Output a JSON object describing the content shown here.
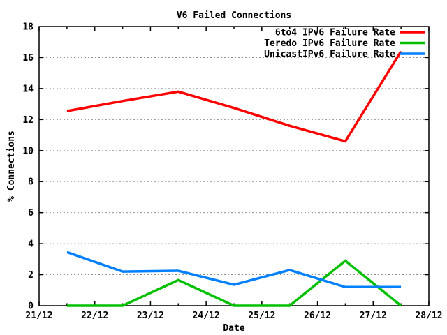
{
  "chart_data": {
    "type": "line",
    "title": "V6 Failed Connections",
    "xlabel": "Date",
    "ylabel": "% Connections",
    "x_tick_labels": [
      "21/12",
      "22/12",
      "23/12",
      "24/12",
      "25/12",
      "26/12",
      "27/12",
      "28/12"
    ],
    "y_tick_labels": [
      "0",
      "2",
      "4",
      "6",
      "8",
      "10",
      "12",
      "14",
      "16",
      "18"
    ],
    "xlim_days": [
      21,
      28
    ],
    "ylim": [
      0,
      18
    ],
    "y_tick_step": 2,
    "grid": "horizontal-dashed",
    "grid_color": "#909090",
    "axis_color": "#000000",
    "background_color": "#ffffff",
    "legend_position": "top-right-inside",
    "x": [
      21.5,
      22.5,
      23.5,
      24.5,
      25.5,
      26.5,
      27.5
    ],
    "series": [
      {
        "name": "6to4 IPv6 Failure Rate",
        "color": "#ff0000",
        "values": [
          12.55,
          13.2,
          13.8,
          12.75,
          11.6,
          10.6,
          16.4
        ]
      },
      {
        "name": "Teredo IPv6 Failure Rate",
        "color": "#00c000",
        "values": [
          0,
          0,
          1.65,
          0,
          0,
          2.9,
          0
        ]
      },
      {
        "name": "UnicastIPv6 Failure Rate",
        "color": "#0080ff",
        "values": [
          3.45,
          2.2,
          2.25,
          1.35,
          2.3,
          1.2,
          1.2
        ]
      }
    ]
  }
}
